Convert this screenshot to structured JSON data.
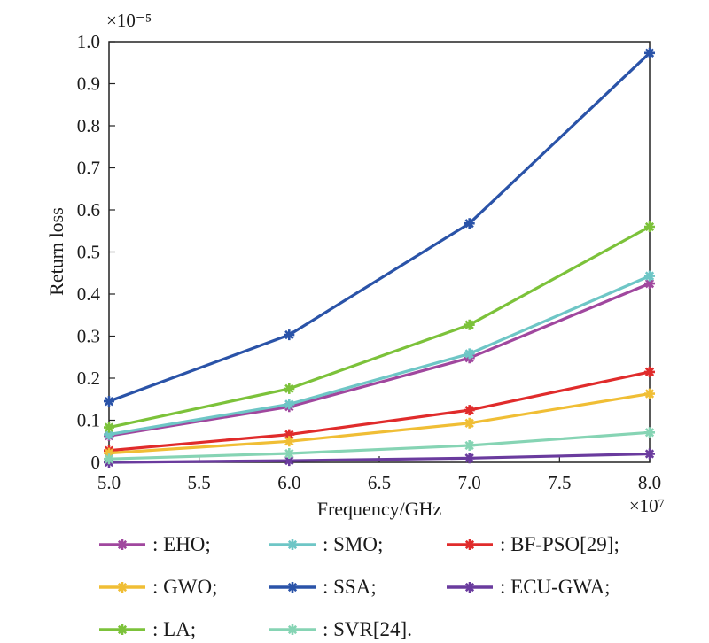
{
  "chart_data": {
    "type": "line",
    "xlabel": "Frequency/GHz",
    "ylabel": "Return loss",
    "x_multiplier": "×10⁷",
    "y_multiplier": "×10⁻⁵",
    "x": [
      5.0,
      6.0,
      7.0,
      8.0
    ],
    "xlim": [
      5.0,
      8.0
    ],
    "ylim": [
      0,
      1.0
    ],
    "xticks": [
      "5.0",
      "5.5",
      "6.0",
      "6.5",
      "7.0",
      "7.5",
      "8.0"
    ],
    "yticks": [
      "0",
      "0.1",
      "0.2",
      "0.3",
      "0.4",
      "0.5",
      "0.6",
      "0.7",
      "0.8",
      "0.9",
      "1.0"
    ],
    "grid": false,
    "legend_position": "bottom",
    "series": [
      {
        "name": "EHO",
        "legend": ": EHO;",
        "color": "#a0479e",
        "values": [
          0.063,
          0.132,
          0.248,
          0.425
        ]
      },
      {
        "name": "SMO",
        "legend": ": SMO;",
        "color": "#6ec6c6",
        "values": [
          0.066,
          0.138,
          0.258,
          0.443
        ]
      },
      {
        "name": "BF-PSO[29]",
        "legend": ": BF-PSO[29];",
        "color": "#e02b2b",
        "values": [
          0.028,
          0.066,
          0.124,
          0.215
        ]
      },
      {
        "name": "GWO",
        "legend": ": GWO;",
        "color": "#f0be35",
        "values": [
          0.022,
          0.05,
          0.093,
          0.163
        ]
      },
      {
        "name": "SSA",
        "legend": ": SSA;",
        "color": "#2a53a8",
        "values": [
          0.145,
          0.303,
          0.568,
          0.973
        ]
      },
      {
        "name": "ECU-GWA",
        "legend": ": ECU-GWA;",
        "color": "#6a3b9e",
        "values": [
          0.0,
          0.004,
          0.01,
          0.02
        ]
      },
      {
        "name": "LA",
        "legend": ": LA;",
        "color": "#7cc23a",
        "values": [
          0.083,
          0.175,
          0.327,
          0.56
        ]
      },
      {
        "name": "SVR[24]",
        "legend": ": SVR[24].",
        "color": "#86d4b4",
        "values": [
          0.008,
          0.021,
          0.04,
          0.071
        ]
      }
    ]
  }
}
